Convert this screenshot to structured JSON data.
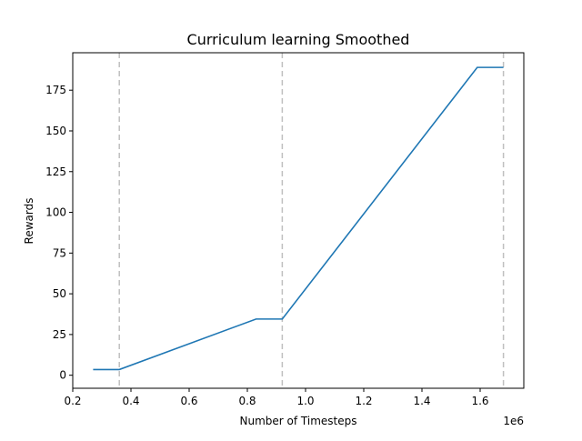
{
  "chart_data": {
    "type": "line",
    "title": "Curriculum learning Smoothed",
    "xlabel": "Number of Timesteps",
    "ylabel": "Rewards",
    "x_offset_label": "1e6",
    "xlim": [
      0.2,
      1.75
    ],
    "ylim": [
      -8,
      198
    ],
    "x_ticks": [
      0.2,
      0.4,
      0.6,
      0.8,
      1.0,
      1.2,
      1.4,
      1.6
    ],
    "x_tick_labels": [
      "0.2",
      "0.4",
      "0.6",
      "0.8",
      "1.0",
      "1.2",
      "1.4",
      "1.6"
    ],
    "y_ticks": [
      0,
      25,
      50,
      75,
      100,
      125,
      150,
      175
    ],
    "y_tick_labels": [
      "0",
      "25",
      "50",
      "75",
      "100",
      "125",
      "150",
      "175"
    ],
    "grid": false,
    "legend": "none",
    "series": [
      {
        "color": "#1f77b4",
        "x": [
          0.27,
          0.36,
          0.83,
          0.92,
          1.59,
          1.68
        ],
        "y": [
          3.5,
          3.5,
          34.5,
          34.5,
          189,
          189
        ]
      }
    ],
    "vlines": {
      "color": "#bfbfbf",
      "style": "dashed",
      "x": [
        0.36,
        0.92,
        1.68
      ]
    }
  }
}
